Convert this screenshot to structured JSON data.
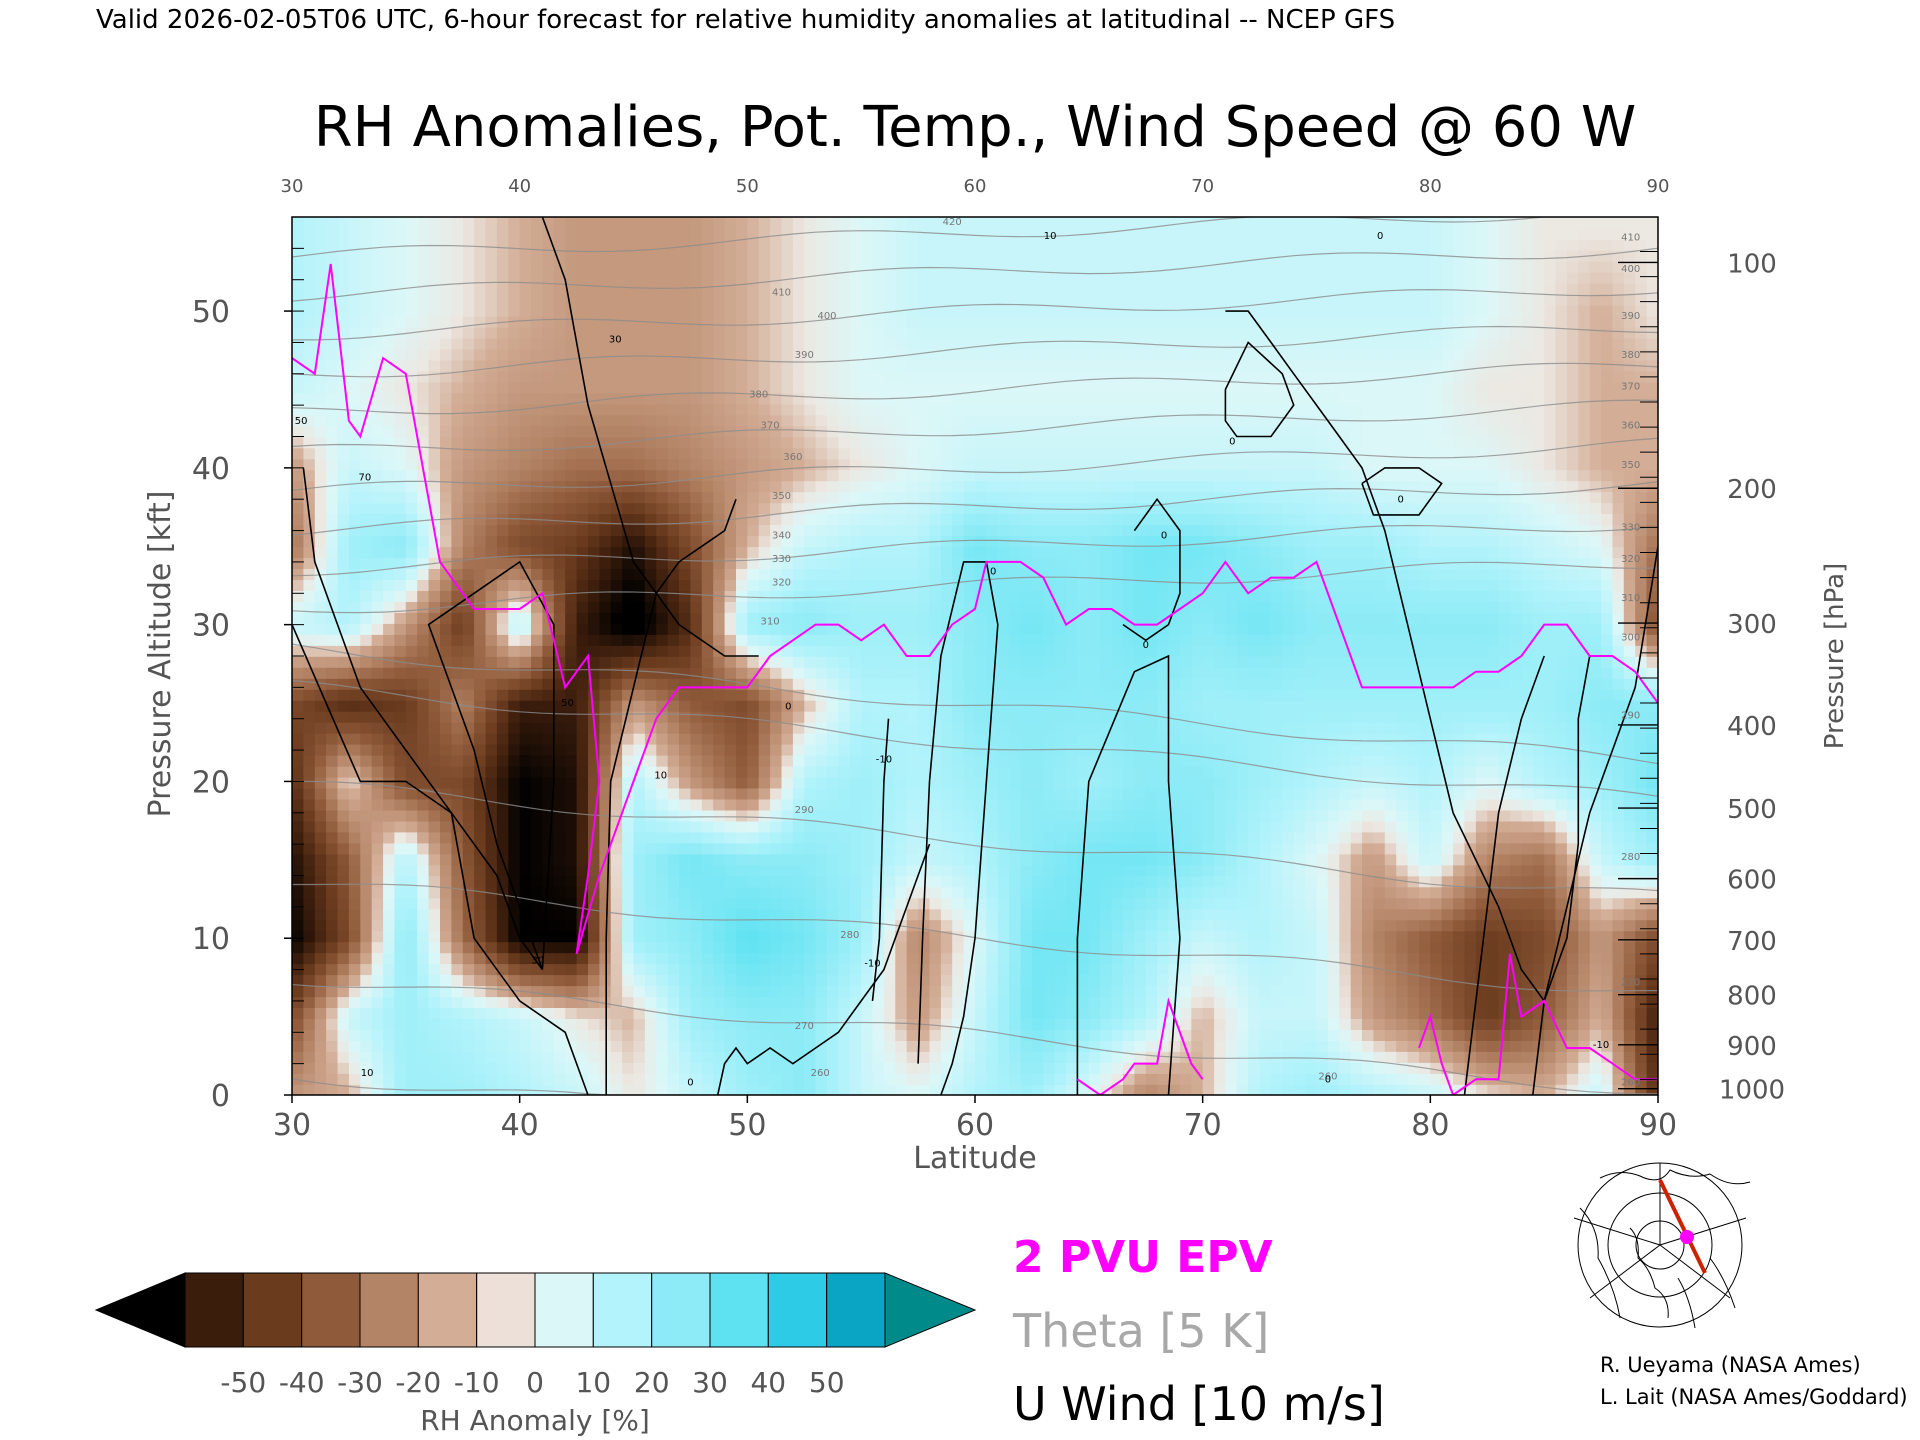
{
  "header": "Valid 2026-02-05T06 UTC, 6-hour forecast for relative humidity anomalies at latitudinal -- NCEP GFS",
  "chart_data": {
    "type": "heatmap",
    "title": "RH Anomalies, Pot. Temp., Wind Speed @ 60 W",
    "xlabel": "Latitude",
    "ylabel": "Pressure Altitude [kft]",
    "y2label": "Pressure [hPa]",
    "xlim": [
      30,
      90
    ],
    "ylim": [
      0,
      56
    ],
    "x_ticks": [
      30,
      40,
      50,
      60,
      70,
      80,
      90
    ],
    "x_top_ticks": [
      "30",
      "40",
      "50",
      "60",
      "70",
      "80",
      "90"
    ],
    "y_ticks": [
      0,
      10,
      20,
      30,
      40,
      50
    ],
    "pressure_ticks": [
      {
        "label": "100",
        "kft": 53.1
      },
      {
        "label": "200",
        "kft": 38.7
      },
      {
        "label": "300",
        "kft": 30.1
      },
      {
        "label": "400",
        "kft": 23.6
      },
      {
        "label": "500",
        "kft": 18.3
      },
      {
        "label": "600",
        "kft": 13.8
      },
      {
        "label": "700",
        "kft": 9.9
      },
      {
        "label": "800",
        "kft": 6.4
      },
      {
        "label": "900",
        "kft": 3.2
      },
      {
        "label": "1000",
        "kft": 0.4
      }
    ],
    "rh_anomaly_field": {
      "lat": [
        30,
        32.5,
        35,
        37.5,
        40,
        42.5,
        45,
        47.5,
        50,
        52.5,
        55,
        57.5,
        60,
        62.5,
        65,
        67.5,
        70,
        72.5,
        75,
        77.5,
        80,
        82.5,
        85,
        87.5,
        90
      ],
      "kft": [
        0,
        5,
        10,
        15,
        20,
        25,
        30,
        35,
        40,
        45,
        50,
        55
      ],
      "values": [
        [
          -10,
          -6,
          20,
          20,
          15,
          10,
          0,
          10,
          20,
          25,
          10,
          5,
          15,
          20,
          5,
          -15,
          -5,
          15,
          20,
          15,
          10,
          0,
          -5,
          10,
          -40
        ],
        [
          -30,
          10,
          20,
          15,
          10,
          0,
          -5,
          20,
          25,
          25,
          10,
          -10,
          10,
          30,
          25,
          15,
          -5,
          10,
          10,
          -10,
          -20,
          -35,
          -25,
          -5,
          -45
        ],
        [
          -55,
          -30,
          25,
          -20,
          -55,
          -55,
          20,
          25,
          35,
          30,
          20,
          -15,
          5,
          30,
          30,
          20,
          10,
          15,
          10,
          -15,
          -25,
          -35,
          -30,
          -10,
          -30
        ],
        [
          -50,
          -25,
          15,
          -25,
          -55,
          -50,
          20,
          30,
          25,
          25,
          20,
          10,
          15,
          25,
          30,
          30,
          25,
          15,
          5,
          -10,
          10,
          -15,
          -20,
          10,
          20
        ],
        [
          -40,
          0,
          -30,
          -30,
          -55,
          -50,
          15,
          -10,
          -25,
          15,
          20,
          15,
          20,
          25,
          20,
          25,
          25,
          20,
          15,
          10,
          15,
          5,
          15,
          20,
          30
        ],
        [
          -30,
          -40,
          -35,
          -15,
          -45,
          -45,
          -10,
          -25,
          -30,
          -5,
          15,
          15,
          25,
          25,
          25,
          25,
          20,
          20,
          20,
          20,
          20,
          20,
          20,
          25,
          25
        ],
        [
          10,
          15,
          -10,
          -35,
          15,
          -45,
          -60,
          -40,
          20,
          25,
          20,
          20,
          25,
          30,
          25,
          30,
          25,
          30,
          25,
          25,
          25,
          25,
          20,
          20,
          -30
        ],
        [
          -20,
          20,
          25,
          -15,
          -30,
          -35,
          -50,
          -30,
          -5,
          10,
          15,
          15,
          30,
          25,
          25,
          30,
          30,
          25,
          20,
          20,
          15,
          15,
          10,
          5,
          -20
        ],
        [
          -10,
          10,
          5,
          -10,
          -15,
          -20,
          -20,
          -15,
          -10,
          -5,
          0,
          5,
          10,
          10,
          10,
          10,
          10,
          10,
          10,
          5,
          5,
          5,
          0,
          -5,
          -5
        ],
        [
          10,
          5,
          0,
          -5,
          -10,
          -10,
          -10,
          -10,
          -5,
          0,
          5,
          5,
          5,
          5,
          5,
          5,
          5,
          5,
          5,
          5,
          5,
          0,
          0,
          -5,
          -5
        ],
        [
          15,
          10,
          5,
          0,
          -5,
          -10,
          -10,
          -10,
          -5,
          0,
          5,
          10,
          10,
          10,
          10,
          10,
          10,
          10,
          10,
          10,
          10,
          5,
          0,
          -5,
          0
        ],
        [
          15,
          10,
          5,
          0,
          -5,
          -10,
          -10,
          -10,
          -5,
          0,
          5,
          10,
          10,
          10,
          10,
          10,
          10,
          10,
          10,
          10,
          10,
          5,
          0,
          0,
          0
        ]
      ]
    },
    "epv_2pvu_line": {
      "lat": [
        30,
        31,
        31.7,
        32.5,
        33,
        34,
        35,
        36,
        36.5,
        37,
        38,
        39,
        40,
        41,
        42,
        43,
        43.5,
        43,
        42.5,
        43.5,
        44.5,
        45,
        46,
        47,
        48,
        49,
        50,
        51,
        52,
        53,
        54,
        55,
        56,
        57,
        58,
        59,
        60,
        60.5,
        61,
        62,
        63,
        64,
        65,
        66,
        67,
        68,
        69,
        70,
        71,
        72,
        73,
        74,
        75,
        76,
        77,
        78,
        79,
        80,
        81,
        82,
        83,
        84,
        85,
        86,
        87,
        88,
        89,
        90
      ],
      "kft": [
        47,
        46,
        53,
        43,
        42,
        47,
        46,
        38,
        34,
        33,
        31,
        31,
        31,
        32,
        26,
        28,
        20,
        14,
        9,
        14,
        18,
        20,
        24,
        26,
        26,
        26,
        26,
        28,
        29,
        30,
        30,
        29,
        30,
        28,
        28,
        30,
        31,
        34,
        34,
        34,
        33,
        30,
        31,
        31,
        30,
        30,
        31,
        32,
        34,
        32,
        33,
        33,
        34,
        30,
        26,
        26,
        26,
        26,
        26,
        27,
        27,
        28,
        30,
        30,
        28,
        28,
        27,
        25
      ]
    },
    "epv_2pvu_surface": [
      {
        "lat": [
          64.5,
          65.5,
          66.5,
          67,
          68,
          68.5,
          69.5,
          70
        ],
        "kft": [
          1,
          0,
          1,
          2,
          2,
          6,
          2,
          1
        ]
      },
      {
        "lat": [
          79.5,
          80,
          80.5,
          81,
          82,
          83,
          83.5,
          84,
          85,
          86,
          87,
          88,
          89,
          90
        ],
        "kft": [
          3,
          5,
          2,
          0,
          1,
          1,
          9,
          5,
          6,
          3,
          3,
          2,
          1,
          1
        ]
      }
    ],
    "u_wind_contours": [
      {
        "lat": [
          41,
          42,
          43,
          45,
          47,
          49,
          50.5
        ],
        "kft": [
          56,
          52,
          44,
          34,
          30,
          28,
          28
        ],
        "label": "30"
      },
      {
        "lat": [
          30.5,
          31,
          33,
          35,
          37,
          39,
          40,
          41
        ],
        "kft": [
          40,
          34,
          26,
          22,
          18,
          14,
          10,
          8
        ],
        "label": "50"
      },
      {
        "lat": [
          41,
          40,
          39,
          38,
          37,
          36,
          38,
          40,
          41.5,
          41.5,
          41
        ],
        "kft": [
          8,
          12,
          16,
          22,
          26,
          30,
          32,
          34,
          30,
          20,
          8
        ],
        "label": "30"
      },
      {
        "lat": [
          43.8,
          43.8,
          44,
          45,
          46,
          47,
          48,
          49,
          49.5
        ],
        "kft": [
          0,
          10,
          20,
          26,
          32,
          34,
          35,
          36,
          38
        ],
        "label": "10"
      },
      {
        "lat": [
          48.7,
          49,
          49.5,
          50,
          51,
          52,
          53,
          54,
          55,
          56,
          57,
          57.5,
          58
        ],
        "kft": [
          0,
          2,
          3,
          2,
          3,
          2,
          3,
          4,
          6,
          8,
          12,
          14,
          16
        ],
        "label": ""
      },
      {
        "lat": [
          55.5,
          55.8,
          56,
          56.2
        ],
        "kft": [
          6,
          10,
          20,
          24
        ],
        "label": "10"
      },
      {
        "lat": [
          57.5,
          57.7,
          58,
          58.5,
          59.5,
          60.5,
          61,
          60.5,
          60,
          59.5,
          59,
          58.5
        ],
        "kft": [
          2,
          10,
          20,
          28,
          34,
          34,
          30,
          20,
          10,
          5,
          2,
          0
        ],
        "label": "0"
      },
      {
        "lat": [
          64.5,
          64.5,
          65,
          67,
          68.5,
          68.5,
          69,
          68.5
        ],
        "kft": [
          0,
          10,
          20,
          27,
          28,
          20,
          10,
          0
        ],
        "label": "0"
      },
      {
        "lat": [
          66.5,
          67.5,
          68.5,
          69,
          69,
          68,
          67
        ],
        "kft": [
          30,
          29,
          30,
          32,
          36,
          38,
          36
        ],
        "label": "0"
      },
      {
        "lat": [
          71,
          72,
          73,
          74,
          75,
          76,
          77,
          78,
          79,
          80,
          81,
          83,
          84,
          85,
          86,
          87,
          88,
          89,
          90
        ],
        "kft": [
          50,
          50,
          48,
          46,
          44,
          42,
          40,
          36,
          30,
          24,
          18,
          12,
          8,
          6,
          12,
          18,
          22,
          26,
          35
        ],
        "label": "0"
      },
      {
        "lat": [
          71,
          72,
          73.5,
          74,
          73,
          71.5,
          71,
          71
        ],
        "kft": [
          45,
          48,
          46,
          44,
          42,
          42,
          43,
          45
        ],
        "label": "0"
      },
      {
        "lat": [
          77,
          78,
          79.5,
          80.5,
          79.5,
          77.5,
          77
        ],
        "kft": [
          39,
          40,
          40,
          39,
          37,
          37,
          39
        ],
        "label": "0"
      },
      {
        "lat": [
          81.5,
          82,
          82.5,
          83,
          84,
          85
        ],
        "kft": [
          0,
          6,
          12,
          18,
          24,
          28
        ],
        "label": "0"
      },
      {
        "lat": [
          84.5,
          85,
          86,
          86.5,
          86.5,
          87
        ],
        "kft": [
          0,
          6,
          10,
          16,
          24,
          28
        ],
        "label": "-10"
      },
      {
        "lat": [
          30,
          31.5,
          33,
          35,
          37,
          38,
          40,
          42,
          43
        ],
        "kft": [
          30,
          25,
          20,
          20,
          18,
          10,
          6,
          4,
          0
        ],
        "label": "10"
      }
    ],
    "theta_levels_K": [
      260,
      270,
      280,
      290,
      300,
      310,
      320,
      330,
      340,
      350,
      360,
      370,
      380,
      390,
      400,
      410,
      420
    ],
    "theta_labels": [
      {
        "label": "260",
        "lat": 53.2,
        "kft": 1.2
      },
      {
        "label": "270",
        "lat": 52.5,
        "kft": 4.2
      },
      {
        "label": "280",
        "lat": 54.5,
        "kft": 10
      },
      {
        "label": "290",
        "lat": 52.5,
        "kft": 18
      },
      {
        "label": "310",
        "lat": 51,
        "kft": 30
      },
      {
        "label": "320",
        "lat": 51.5,
        "kft": 32.5
      },
      {
        "label": "330",
        "lat": 51.5,
        "kft": 34
      },
      {
        "label": "340",
        "lat": 51.5,
        "kft": 35.5
      },
      {
        "label": "350",
        "lat": 51.5,
        "kft": 38
      },
      {
        "label": "360",
        "lat": 52,
        "kft": 40.5
      },
      {
        "label": "370",
        "lat": 51,
        "kft": 42.5
      },
      {
        "label": "380",
        "lat": 50.5,
        "kft": 44.5
      },
      {
        "label": "390",
        "lat": 52.5,
        "kft": 47
      },
      {
        "label": "400",
        "lat": 53.5,
        "kft": 49.5
      },
      {
        "label": "410",
        "lat": 51.5,
        "kft": 51
      },
      {
        "label": "420",
        "lat": 59,
        "kft": 55.5
      },
      {
        "label": "410",
        "lat": 88.8,
        "kft": 54.5
      },
      {
        "label": "400",
        "lat": 88.8,
        "kft": 52.5
      },
      {
        "label": "390",
        "lat": 88.8,
        "kft": 49.5
      },
      {
        "label": "380",
        "lat": 88.8,
        "kft": 47
      },
      {
        "label": "370",
        "lat": 88.8,
        "kft": 45
      },
      {
        "label": "360",
        "lat": 88.8,
        "kft": 42.5
      },
      {
        "label": "350",
        "lat": 88.8,
        "kft": 40
      },
      {
        "label": "330",
        "lat": 88.8,
        "kft": 36
      },
      {
        "label": "320",
        "lat": 88.8,
        "kft": 34
      },
      {
        "label": "310",
        "lat": 88.8,
        "kft": 31.5
      },
      {
        "label": "300",
        "lat": 88.8,
        "kft": 29
      },
      {
        "label": "290",
        "lat": 88.8,
        "kft": 24
      },
      {
        "label": "280",
        "lat": 88.8,
        "kft": 15
      },
      {
        "label": "270",
        "lat": 88.8,
        "kft": 7
      },
      {
        "label": "260",
        "lat": 88.8,
        "kft": 0.6
      },
      {
        "label": "260",
        "lat": 75.5,
        "kft": 1
      }
    ],
    "u_wind_labels": [
      {
        "label": "30",
        "lat": 44.2,
        "kft": 48
      },
      {
        "label": "30",
        "lat": 40.8,
        "kft": 8.4
      },
      {
        "label": "50",
        "lat": 30.4,
        "kft": 42.8
      },
      {
        "label": "70",
        "lat": 33.2,
        "kft": 39.2
      },
      {
        "label": "50",
        "lat": 42.1,
        "kft": 24.8
      },
      {
        "label": "10",
        "lat": 46.2,
        "kft": 20.2
      },
      {
        "label": "10",
        "lat": 33.3,
        "kft": 1.2
      },
      {
        "label": "0",
        "lat": 47.5,
        "kft": 0.6
      },
      {
        "label": "0",
        "lat": 51.8,
        "kft": 24.6
      },
      {
        "label": "-10",
        "lat": 56,
        "kft": 21.2
      },
      {
        "label": "-10",
        "lat": 55.5,
        "kft": 8.2
      },
      {
        "label": "0",
        "lat": 60.8,
        "kft": 33.2
      },
      {
        "label": "10",
        "lat": 63.3,
        "kft": 54.6
      },
      {
        "label": "0",
        "lat": 77.8,
        "kft": 54.6
      },
      {
        "label": "0",
        "lat": 71.3,
        "kft": 41.5
      },
      {
        "label": "0",
        "lat": 67.5,
        "kft": 28.5
      },
      {
        "label": "0",
        "lat": 68.3,
        "kft": 35.5
      },
      {
        "label": "0",
        "lat": 78.7,
        "kft": 37.8
      },
      {
        "label": "0",
        "lat": 75.5,
        "kft": 0.8
      },
      {
        "label": "-10",
        "lat": 87.5,
        "kft": 3.0
      }
    ],
    "legend": {
      "colorbar_label": "RH Anomaly [%]",
      "colorbar_ticks": [
        "-50",
        "-40",
        "-30",
        "-20",
        "-10",
        "0",
        "10",
        "20",
        "30",
        "40",
        "50"
      ],
      "colorbar_colors": [
        "#000000",
        "#3b1d0c",
        "#6b3b1e",
        "#8e5a3a",
        "#b48466",
        "#d3ad96",
        "#ece0d8",
        "#dcf7f8",
        "#b3f3fb",
        "#8cebf6",
        "#5ee2f2",
        "#2ecbe6",
        "#0aa5c5",
        "#008a8a"
      ],
      "epv_label": "2 PVU EPV",
      "theta_label": "Theta [5 K]",
      "uwind_label": "U Wind [10 m/s]"
    },
    "colors": {
      "epv": "#ff00ff",
      "theta": "#8c8c8c",
      "uwind": "#000000",
      "section_line": "#cc2200"
    }
  },
  "credits": {
    "line1": "R. Ueyama (NASA Ames)",
    "line2": "L. Lait (NASA Ames/Goddard)"
  }
}
